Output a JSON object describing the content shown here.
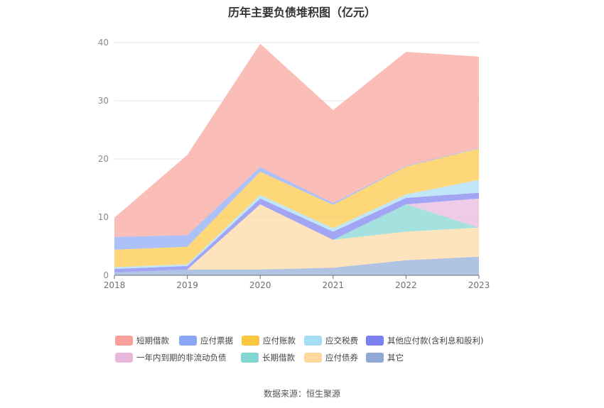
{
  "chart_data": {
    "type": "area",
    "stacked": true,
    "title": "历年主要负债堆积图（亿元）",
    "source": "数据来源：恒生聚源",
    "x": [
      "2018",
      "2019",
      "2020",
      "2021",
      "2022",
      "2023"
    ],
    "ylim": [
      0,
      40
    ],
    "yticks": [
      0,
      10,
      20,
      30,
      40
    ],
    "grid": true,
    "legend_position": "bottom",
    "series": [
      {
        "name": "其它",
        "color": "#8fa9d6",
        "values": [
          0.5,
          1.0,
          1.0,
          1.3,
          2.6,
          3.2
        ]
      },
      {
        "name": "应付债券",
        "color": "#fdd9a0",
        "values": [
          0,
          0,
          11.2,
          4.8,
          4.9,
          5.0
        ]
      },
      {
        "name": "长期借款",
        "color": "#7fd6d2",
        "values": [
          0,
          0,
          0,
          0,
          4.7,
          0
        ]
      },
      {
        "name": "一年内到期的非流动负债",
        "color": "#e8b7dc",
        "values": [
          0,
          0,
          0,
          0,
          0,
          5.0
        ]
      },
      {
        "name": "其他应付款(含利息和股利)",
        "color": "#7b7ff0",
        "values": [
          0.6,
          0.6,
          1.0,
          1.4,
          1.1,
          1.0
        ]
      },
      {
        "name": "应交税费",
        "color": "#a6dcf5",
        "values": [
          0.3,
          0.3,
          0.6,
          0.6,
          0.6,
          2.2
        ]
      },
      {
        "name": "应付账款",
        "color": "#fcc63f",
        "values": [
          3.0,
          3.0,
          4.0,
          4.0,
          4.8,
          5.4
        ]
      },
      {
        "name": "应付票据",
        "color": "#89a7f5",
        "values": [
          2.2,
          2.0,
          0.8,
          0.3,
          0.1,
          0.1
        ]
      },
      {
        "name": "短期借款",
        "color": "#f9a199",
        "values": [
          3.3,
          13.8,
          21.2,
          16.0,
          19.6,
          15.7
        ]
      }
    ],
    "legend_order": [
      "短期借款",
      "应付票据",
      "应付账款",
      "应交税费",
      "其他应付款(含利息和股利)",
      "一年内到期的非流动负债",
      "长期借款",
      "应付债券",
      "其它"
    ]
  }
}
